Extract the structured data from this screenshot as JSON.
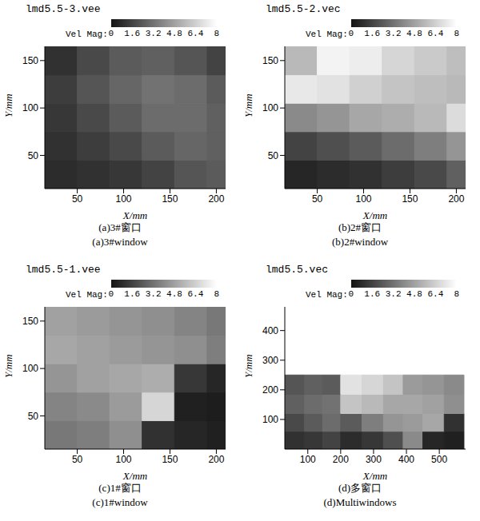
{
  "chart_data": [
    {
      "type": "heatmap",
      "title": "lmd5.5-3.vee",
      "subtitle": [
        "(a)3#窗口",
        "(a)3#window"
      ],
      "x_label": "X/mm",
      "y_label": "Y/mm",
      "xlim": [
        15,
        210
      ],
      "ylim": [
        15,
        165
      ],
      "xticks": [
        50,
        100,
        150,
        200
      ],
      "yticks": [
        50,
        100,
        150
      ],
      "heatmap": {
        "x_edges": [
          15,
          50,
          85,
          120,
          155,
          190,
          210
        ],
        "y_edges": [
          15,
          45,
          75,
          105,
          135,
          165
        ],
        "cells": [
          [
            0.8,
            1.0,
            1.2,
            1.6,
            2.2,
            2.4
          ],
          [
            1.0,
            1.4,
            1.8,
            2.4,
            2.8,
            2.6
          ],
          [
            1.2,
            1.8,
            2.4,
            3.0,
            3.0,
            2.6
          ],
          [
            1.4,
            2.2,
            2.8,
            3.2,
            3.0,
            2.4
          ],
          [
            1.0,
            1.8,
            2.4,
            2.6,
            2.2,
            1.6
          ]
        ]
      },
      "colorbar": {
        "label": "Vel Mag:",
        "range": [
          0,
          8
        ],
        "ticks": [
          0,
          1.6,
          3.2,
          4.8,
          6.4,
          8
        ]
      }
    },
    {
      "type": "heatmap",
      "title": "lmd5.5-2.vec",
      "subtitle": [
        "(b)2#窗口",
        "(b)2#window"
      ],
      "x_label": "X/mm",
      "y_label": "Y/mm",
      "xlim": [
        15,
        210
      ],
      "ylim": [
        15,
        165
      ],
      "xticks": [
        50,
        100,
        150,
        200
      ],
      "yticks": [
        50,
        100,
        150
      ],
      "heatmap": {
        "x_edges": [
          15,
          50,
          85,
          120,
          155,
          190,
          210
        ],
        "y_edges": [
          15,
          45,
          75,
          105,
          135,
          165
        ],
        "cells": [
          [
            0.6,
            0.8,
            1.0,
            1.4,
            1.8,
            2.6
          ],
          [
            1.6,
            2.0,
            2.4,
            3.0,
            3.6,
            4.4
          ],
          [
            4.0,
            4.4,
            5.0,
            5.2,
            5.6,
            6.8
          ],
          [
            7.2,
            7.0,
            6.4,
            6.0,
            5.8,
            5.6
          ],
          [
            5.6,
            7.6,
            7.4,
            6.6,
            6.2,
            5.8
          ]
        ]
      },
      "colorbar": {
        "label": "Vel Mag:",
        "range": [
          0,
          8
        ],
        "ticks": [
          0,
          1.6,
          3.2,
          4.8,
          6.4,
          8
        ]
      }
    },
    {
      "type": "heatmap",
      "title": "lmd5.5-1.vee",
      "subtitle": [
        "(c)1#窗口",
        "(c)1#window"
      ],
      "x_label": "X/mm",
      "y_label": "Y/mm",
      "xlim": [
        15,
        210
      ],
      "ylim": [
        15,
        165
      ],
      "xticks": [
        50,
        100,
        150,
        200
      ],
      "yticks": [
        50,
        100,
        150
      ],
      "heatmap": {
        "x_edges": [
          15,
          50,
          85,
          120,
          155,
          190,
          210
        ],
        "y_edges": [
          15,
          45,
          75,
          105,
          135,
          165
        ],
        "cells": [
          [
            3.4,
            3.6,
            4.2,
            1.0,
            0.6,
            0.4
          ],
          [
            3.8,
            4.0,
            4.6,
            6.6,
            0.4,
            0.3
          ],
          [
            4.4,
            4.8,
            5.0,
            5.2,
            1.2,
            0.6
          ],
          [
            5.0,
            4.8,
            4.6,
            4.4,
            4.2,
            3.6
          ],
          [
            4.8,
            4.6,
            4.4,
            4.2,
            3.8,
            3.4
          ]
        ]
      },
      "colorbar": {
        "label": "Vel Mag:",
        "range": [
          0,
          8
        ],
        "ticks": [
          0,
          1.6,
          3.2,
          4.8,
          6.4,
          8
        ]
      }
    },
    {
      "type": "heatmap",
      "title": "lmd5.5.vec",
      "subtitle": [
        "(d)多窗口",
        "(d)Multiwindows"
      ],
      "x_label": "X/mm",
      "y_label": "Y/mm",
      "xlim": [
        30,
        580
      ],
      "ylim": [
        0,
        480
      ],
      "xticks": [
        100,
        200,
        300,
        400,
        500
      ],
      "yticks": [
        100,
        200,
        300,
        400
      ],
      "heatmap": {
        "x_edges": [
          30,
          90,
          145,
          200,
          265,
          330,
          390,
          450,
          515,
          575
        ],
        "y_edges": [
          0,
          60,
          120,
          185,
          250
        ],
        "cells": [
          [
            1.0,
            1.2,
            1.6,
            0.8,
            1.2,
            2.0,
            4.0,
            0.6,
            0.4
          ],
          [
            1.8,
            2.4,
            3.0,
            2.4,
            3.6,
            4.4,
            4.6,
            5.0,
            1.0
          ],
          [
            2.6,
            3.0,
            3.2,
            6.0,
            5.6,
            5.0,
            5.0,
            4.8,
            4.2
          ],
          [
            2.2,
            2.6,
            2.4,
            7.0,
            6.6,
            6.0,
            4.6,
            4.4,
            4.0
          ]
        ]
      },
      "colorbar": {
        "label": "Vel Mag:",
        "range": [
          0,
          8
        ],
        "ticks": [
          0,
          1.6,
          3.2,
          4.8,
          6.4,
          8
        ]
      }
    }
  ]
}
